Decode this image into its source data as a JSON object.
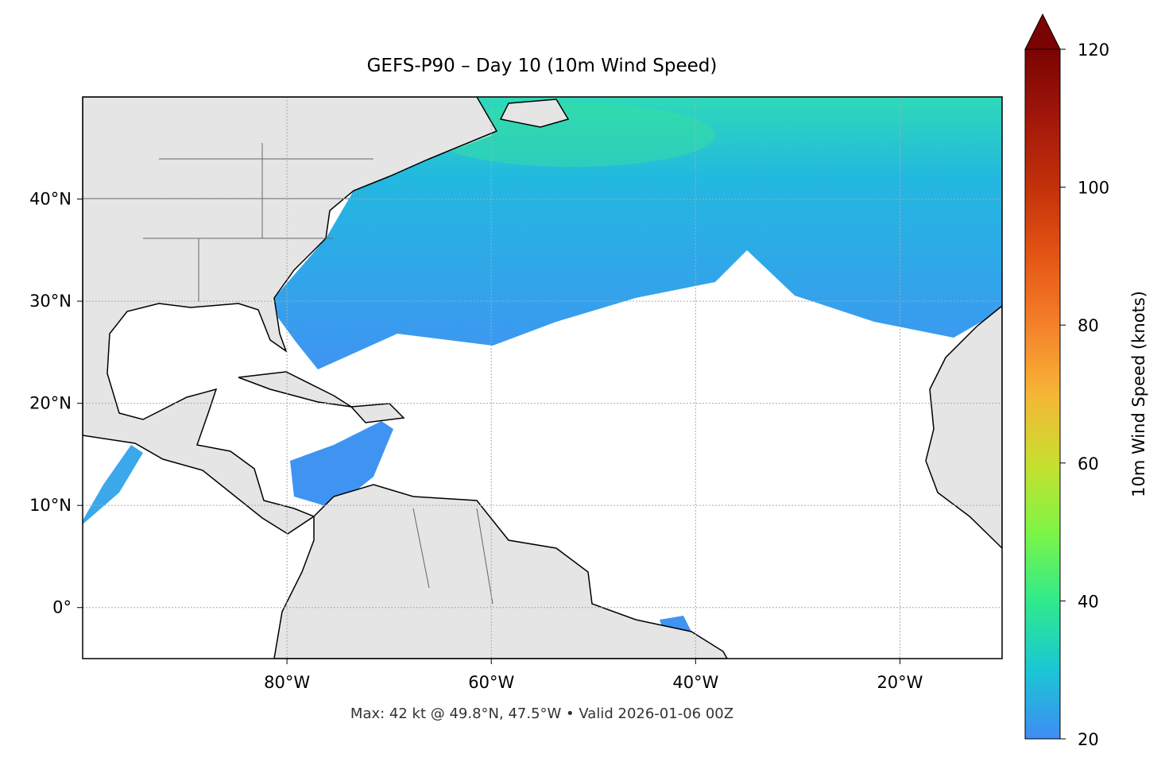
{
  "chart_data": {
    "type": "map",
    "title": "GEFS-P90 – Day 10 (10m Wind Speed)",
    "footnote": "Max: 42 kt @ 49.8°N, 47.5°W • Valid 2026-01-06 00Z",
    "xlim": [
      -100,
      -10
    ],
    "ylim": [
      -5,
      50
    ],
    "xticks": [
      {
        "value": -80,
        "label": "80°W"
      },
      {
        "value": -60,
        "label": "60°W"
      },
      {
        "value": -40,
        "label": "40°W"
      },
      {
        "value": -20,
        "label": "20°W"
      }
    ],
    "yticks": [
      {
        "value": 0,
        "label": "0°"
      },
      {
        "value": 10,
        "label": "10°N"
      },
      {
        "value": 20,
        "label": "20°N"
      },
      {
        "value": 30,
        "label": "30°N"
      },
      {
        "value": 40,
        "label": "40°N"
      }
    ],
    "grid": true,
    "colorbar": {
      "label": "10m Wind Speed (knots)",
      "lim": [
        20,
        120
      ],
      "ticks": [
        20,
        40,
        60,
        80,
        100,
        120
      ]
    }
  }
}
